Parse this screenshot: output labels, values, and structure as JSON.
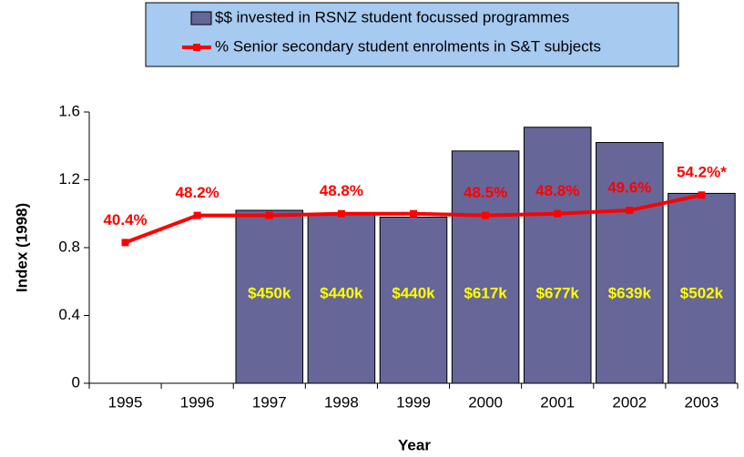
{
  "chart_data": {
    "type": "bar_line",
    "x_label": "Year",
    "y_label": "Index (1998)",
    "categories": [
      "1995",
      "1996",
      "1997",
      "1998",
      "1999",
      "2000",
      "2001",
      "2002",
      "2003"
    ],
    "series": [
      {
        "name": "$$ invested in RSNZ student focussed programmes",
        "type": "bar",
        "color": "#666699",
        "values": [
          null,
          null,
          1.02,
          1.0,
          0.98,
          1.37,
          1.51,
          1.42,
          1.12
        ],
        "annotations": [
          null,
          null,
          "$450k",
          "$440k",
          "$440k",
          "$617k",
          "$677k",
          "$639k",
          "$502k"
        ],
        "annotation_color": "#ffff00"
      },
      {
        "name": "% Senior secondary student enrolments in S&T subjects",
        "type": "line",
        "color": "#ff0000",
        "values": [
          0.83,
          0.99,
          0.99,
          1.0,
          1.0,
          0.99,
          1.0,
          1.02,
          1.11
        ],
        "annotations": [
          "40.4%",
          "48.2%",
          null,
          "48.8%",
          null,
          "48.5%",
          "48.8%",
          "49.6%",
          "54.2%*"
        ],
        "annotation_color": "#ff0000"
      }
    ],
    "ylim": [
      0,
      1.6
    ],
    "yticks": [
      0,
      0.4,
      0.8,
      1.2,
      1.6
    ],
    "grid": false,
    "legend": "top"
  }
}
